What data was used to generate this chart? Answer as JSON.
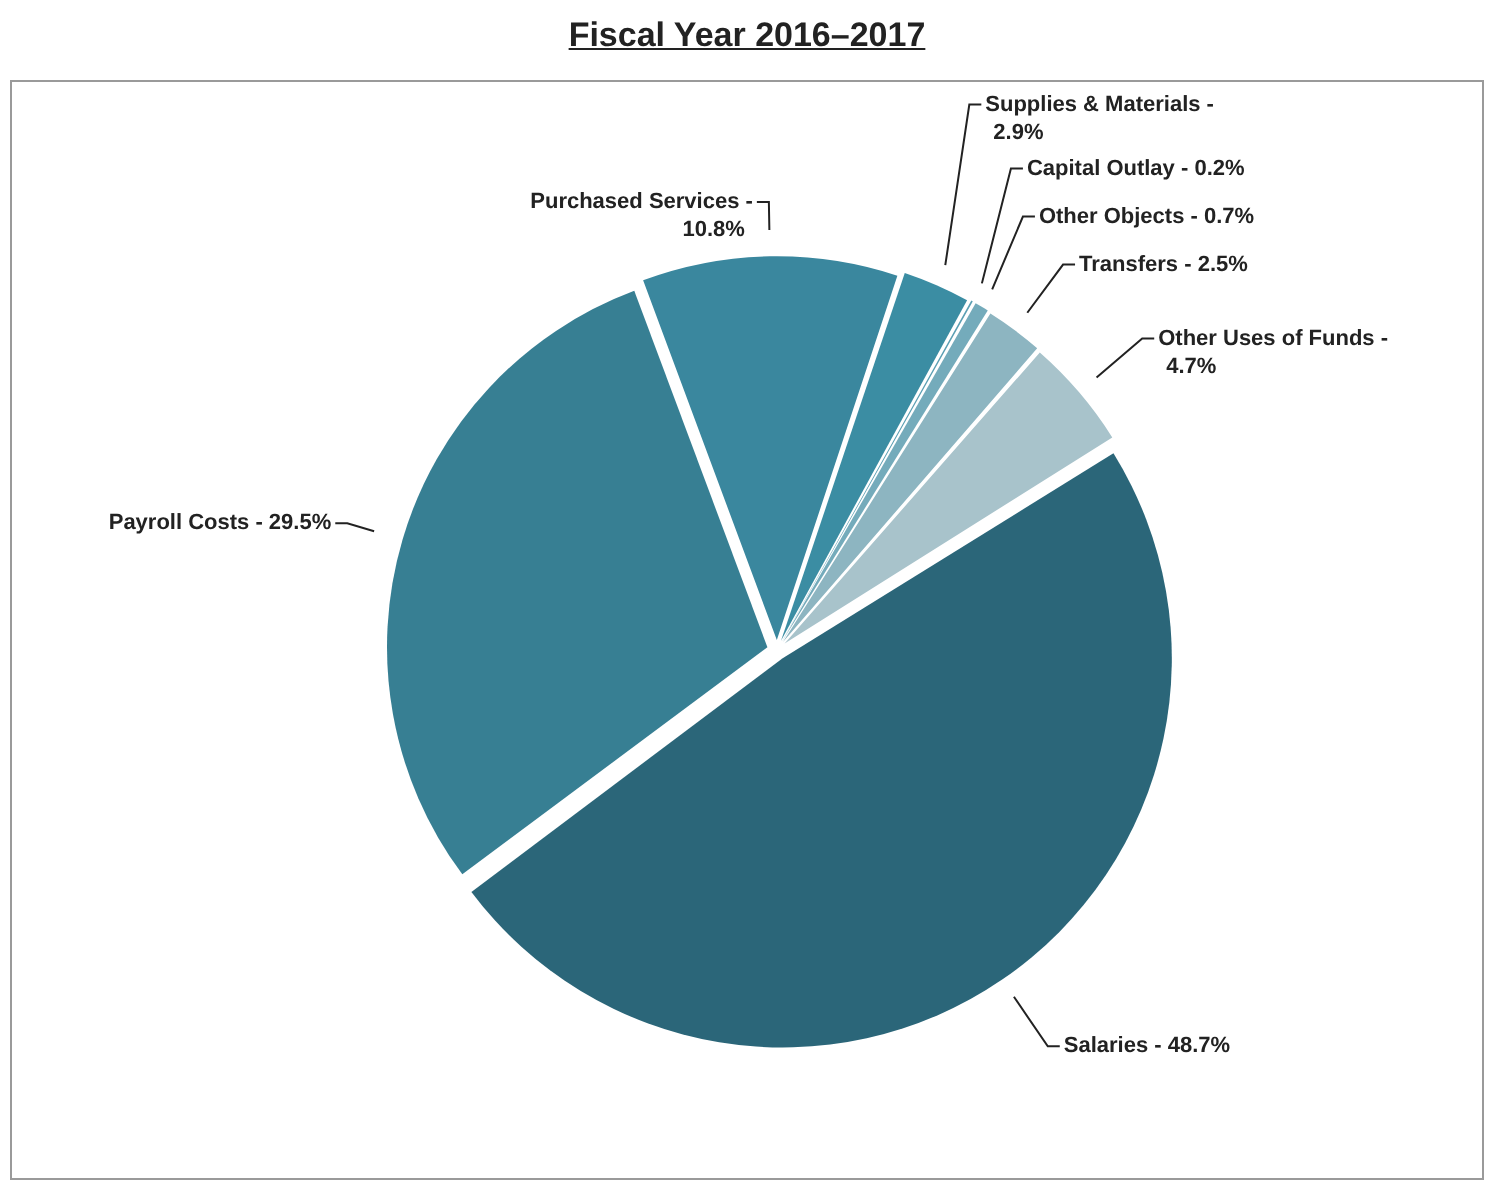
{
  "chart_data": {
    "type": "pie",
    "title": "Fiscal Year 2016–2017",
    "categories": [
      "Salaries -",
      "Payroll Costs -",
      "Purchased Services -",
      "Supplies & Materials -",
      "Capital Outlay -",
      "Other Objects -",
      "Transfers -",
      "Other Uses of Funds -"
    ],
    "values": [
      48.7,
      29.5,
      10.8,
      2.9,
      0.2,
      0.7,
      2.5,
      4.7
    ],
    "value_labels": [
      "48.7%",
      "29.5%",
      "10.8%",
      "2.9%",
      "0.2%",
      "0.7%",
      "2.5%",
      "4.7%"
    ],
    "colors": [
      "#2b6679",
      "#377f93",
      "#3a879e",
      "#3b8da3",
      "#5b9fb3",
      "#74abbb",
      "#8db5c1",
      "#a8c3cb"
    ],
    "legend": false
  }
}
